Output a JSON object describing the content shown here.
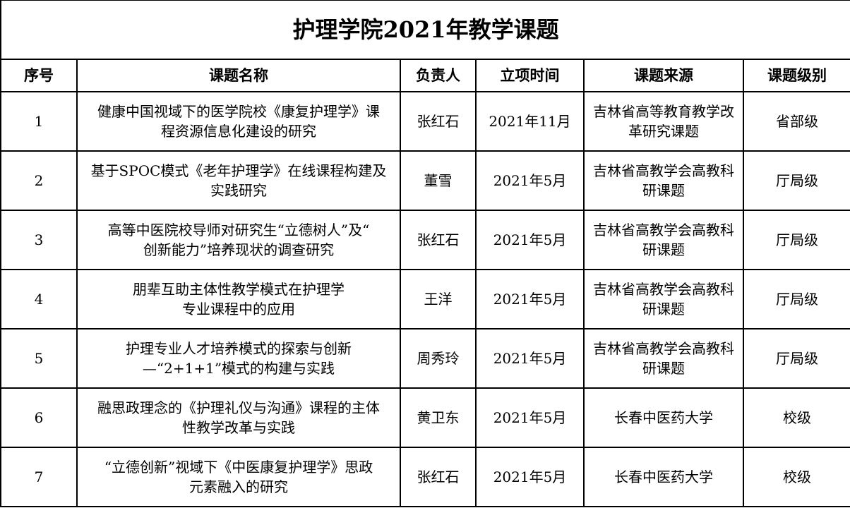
{
  "title": "护理学院2021年教学课题",
  "headers": [
    "序号",
    "课题名称",
    "负责人",
    "立项时间",
    "课题来源",
    "课题级别"
  ],
  "rows": [
    {
      "no": "1",
      "name": [
        "健康中国视域下的医学院校《康复护理学》课",
        "程资源信息化建设的研究"
      ],
      "leader": "张红石",
      "date": "2021年11月",
      "source": [
        "吉林省高等教育教学改",
        "革研究课题"
      ],
      "level": "省部级"
    },
    {
      "no": "2",
      "name": [
        "基于SPOC模式《老年护理学》在线课程构建及",
        "实践研究"
      ],
      "leader": "董雪",
      "date": "2021年5月",
      "source": [
        "吉林省高教学会高教科",
        "研课题"
      ],
      "level": "厅局级"
    },
    {
      "no": "3",
      "name": [
        "高等中医院校导师对研究生“立德树人”及“",
        "创新能力”培养现状的调查研究"
      ],
      "leader": "张红石",
      "date": "2021年5月",
      "source": [
        "吉林省高教学会高教科",
        "研课题"
      ],
      "level": "厅局级"
    },
    {
      "no": "4",
      "name": [
        "朋辈互助主体性教学模式在护理学",
        "专业课程中的应用"
      ],
      "leader": "王洋",
      "date": "2021年5月",
      "source": [
        "吉林省高教学会高教科",
        "研课题"
      ],
      "level": "厅局级"
    },
    {
      "no": "5",
      "name": [
        "护理专业人才培养模式的探索与创新",
        "—“2+1+1”模式的构建与实践"
      ],
      "leader": "周秀玲",
      "date": "2021年5月",
      "source": [
        "吉林省高教学会高教科",
        "研课题"
      ],
      "level": "厅局级"
    },
    {
      "no": "6",
      "name": [
        "融思政理念的《护理礼仪与沟通》课程的主体",
        "性教学改革与实践"
      ],
      "leader": "黄卫东",
      "date": "2021年5月",
      "source": [
        "长春中医药大学"
      ],
      "level": "校级"
    },
    {
      "no": "7",
      "name": [
        "“立德创新”视域下《中医康复护理学》思政",
        "元素融入的研究"
      ],
      "leader": "张红石",
      "date": "2021年5月",
      "source": [
        "长春中医药大学"
      ],
      "level": "校级"
    }
  ]
}
